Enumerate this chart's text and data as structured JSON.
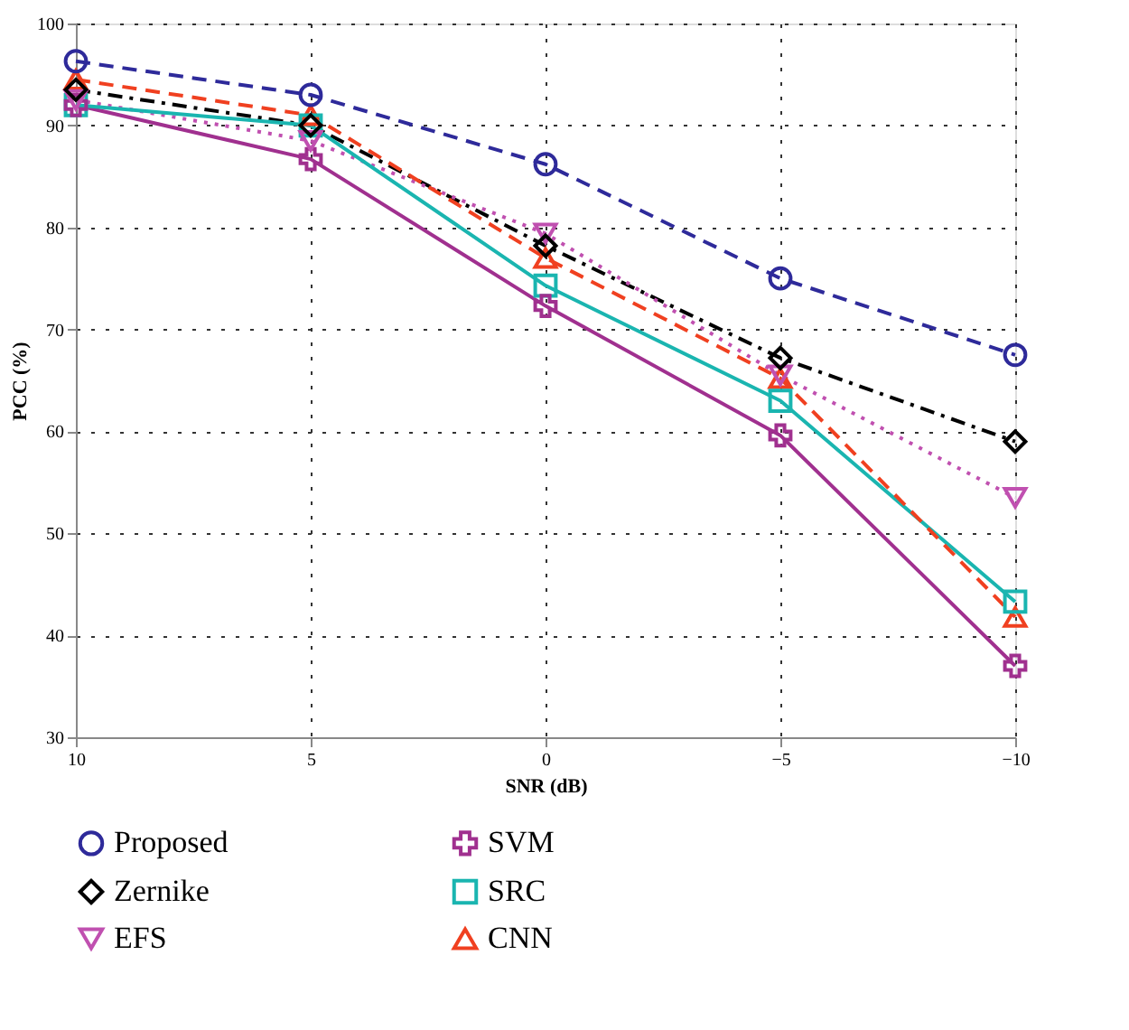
{
  "chart_data": {
    "type": "line",
    "xlabel": "SNR (dB)",
    "ylabel": "PCC (%)",
    "x": [
      10,
      5,
      0,
      -5,
      -10
    ],
    "xlim": [
      10,
      -10
    ],
    "xticks": [
      10,
      5,
      0,
      {
        "value": -5,
        "label": "−5"
      },
      {
        "value": -10,
        "label": "−10"
      }
    ],
    "ylim": [
      30,
      100
    ],
    "yticks": [
      30,
      40,
      50,
      60,
      70,
      80,
      90,
      100
    ],
    "grid": true,
    "legend": "bottom",
    "series": [
      {
        "name": "Proposed",
        "color": "#2e2a9a",
        "marker": "circle",
        "line_style": "dashed",
        "values": [
          96.3,
          93,
          86.2,
          75,
          67.5
        ]
      },
      {
        "name": "Zernike",
        "color": "#000000",
        "marker": "diamond",
        "line_style": "dashdot",
        "values": [
          93.5,
          90,
          78.2,
          67.2,
          59
        ]
      },
      {
        "name": "EFS",
        "color": "#c050b0",
        "marker": "triangle-down",
        "line_style": "dotted",
        "values": [
          92.5,
          88.5,
          79.4,
          65.5,
          53.5
        ]
      },
      {
        "name": "SVM",
        "color": "#a0308f",
        "marker": "cross",
        "line_style": "solid",
        "values": [
          92,
          86.7,
          72.3,
          59.6,
          37
        ]
      },
      {
        "name": "SRC",
        "color": "#1ab5b0",
        "marker": "square",
        "line_style": "solid",
        "values": [
          92,
          90,
          74.3,
          63,
          43.3
        ]
      },
      {
        "name": "CNN",
        "color": "#f04020",
        "marker": "triangle",
        "line_style": "dashed",
        "values": [
          94.5,
          91,
          77,
          65.2,
          41.8
        ]
      }
    ]
  }
}
